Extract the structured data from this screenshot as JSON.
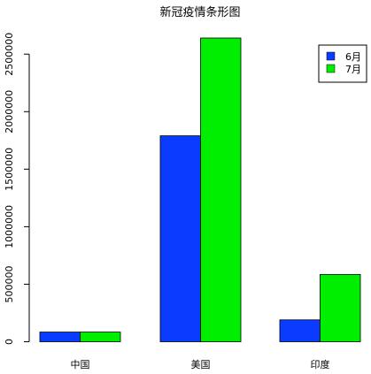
{
  "chart_data": {
    "type": "bar",
    "title": "新冠疫情条形图",
    "xlabel": "",
    "ylabel": "",
    "categories": [
      "中国",
      "美国",
      "印度"
    ],
    "series": [
      {
        "name": "6月",
        "color": "#0a3cff",
        "values": [
          84000,
          1790000,
          190000
        ]
      },
      {
        "name": "7月",
        "color": "#00ee00",
        "values": [
          84000,
          2640000,
          585000
        ]
      }
    ],
    "y_ticks": [
      0,
      500000,
      1000000,
      1500000,
      2000000,
      2500000
    ],
    "y_tick_labels": [
      "0",
      "500000",
      "1000000",
      "1500000",
      "2000000",
      "2500000"
    ],
    "ylim": [
      0,
      2640000
    ],
    "grid": false,
    "legend_position": "top-right"
  }
}
